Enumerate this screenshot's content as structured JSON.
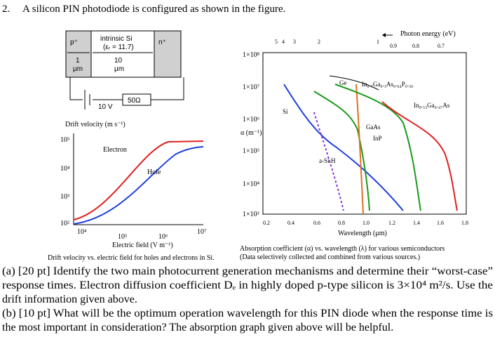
{
  "problem": {
    "number": "2.",
    "intro": "A silicon PIN photodiode is configured as shown in the figure."
  },
  "circuit": {
    "p_label": "p⁺",
    "i_label": "intrinsic Si",
    "eps": "(εᵣ = 11.7)",
    "n_label": "n⁺",
    "p_width": "1",
    "p_unit": "μm",
    "i_width": "10",
    "i_unit": "μm",
    "resistor": "50Ω",
    "battery": "10 V"
  },
  "drift_plot": {
    "ylabel": "Drift velocity (m s⁻¹)",
    "yticks": [
      "10⁵",
      "10⁴",
      "10³",
      "10²"
    ],
    "xticks": [
      "10⁴",
      "10⁵",
      "10⁶",
      "10⁷"
    ],
    "xlabel": "Electric field (V m⁻¹)",
    "electron": "Electron",
    "hole": "Hole",
    "caption": "Drift velocity vs. electric field for holes and electrons in Si."
  },
  "absorption_plot": {
    "top_axis": "Photon energy (eV)",
    "top_ticks": [
      "5",
      "4",
      "3",
      "2",
      "1",
      "0.9",
      "0.8",
      "0.7"
    ],
    "ylabel": "α (m⁻¹)",
    "yticks": [
      "1×10⁸",
      "1×10⁷",
      "1×10⁶",
      "1×10⁵",
      "1×10⁴",
      "1×10³"
    ],
    "xticks": [
      "0.2",
      "0.4",
      "0.6",
      "0.8",
      "1.0",
      "1.2",
      "1.4",
      "1.6",
      "1.8"
    ],
    "xlabel": "Wavelength (μm)",
    "curve_labels": [
      "Ge",
      "In₀.₇Ga₀.₃As₀.₆₄P₀.₃₆",
      "In₀.₅₃Ga₀.₄₇As",
      "Si",
      "GaAs",
      "InP",
      "a-Si:H"
    ],
    "caption": [
      "Absorption coefficient (α) vs. wavelength (λ) for various semiconductors",
      "(Data selectively collected and combined from various sources.)"
    ]
  },
  "parts": [
    [
      "(a) [20 pt] Identify the two main photocurrent generation mechanisms and determine their “worst-case”",
      "response times. Electron diffusion coefficient Dₑ in highly doped p-type silicon is 3×10⁴ m²/s. Use the",
      "drift information given above."
    ],
    [
      " (b) [10 pt] What will be the optimum operation wavelength for this PIN diode when the response time is",
      "the most important in consideration? The absorption graph given above will be helpful."
    ]
  ]
}
